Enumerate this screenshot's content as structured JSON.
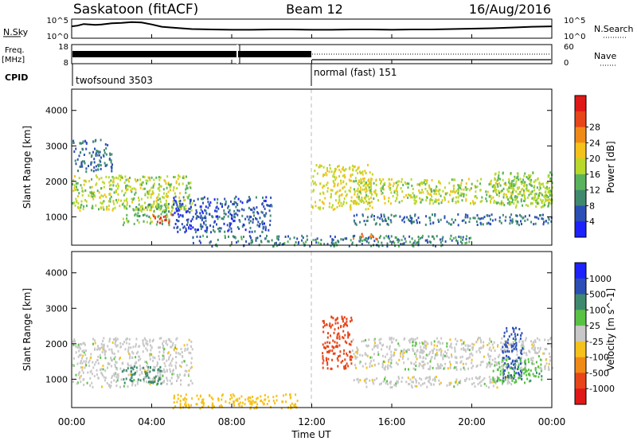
{
  "header": {
    "station": "Saskatoon (fitACF)",
    "beam": "Beam 12",
    "date": "16/Aug/2016"
  },
  "chart_data": [
    {
      "type": "line",
      "panel": "noise",
      "left_label": "N.Sky",
      "right_label": "N.Search",
      "left_ticks": [
        "10^5",
        "10^0"
      ],
      "right_ticks": [
        "10^5",
        "10^0"
      ],
      "x": [
        0,
        0.3,
        0.6,
        0.9,
        1.2,
        1.5,
        2.0,
        2.5,
        3.0,
        3.5,
        4.0,
        4.5,
        5.0,
        6.0,
        7.0,
        8.0,
        9.0,
        10.0,
        11.0,
        12.0,
        13.0,
        14.0,
        15.0,
        16.0,
        17.0,
        18.0,
        19.0,
        20.0,
        21.0,
        22.0,
        23.0,
        24.0
      ],
      "values": [
        3.1,
        3.3,
        3.7,
        3.6,
        3.5,
        3.6,
        3.9,
        4.0,
        4.2,
        4.1,
        3.6,
        3.0,
        2.8,
        2.4,
        2.3,
        2.2,
        2.2,
        2.3,
        2.3,
        2.2,
        2.2,
        2.3,
        2.3,
        2.2,
        2.3,
        2.3,
        2.4,
        2.5,
        2.6,
        2.8,
        3.0,
        3.1
      ],
      "ylim": [
        0,
        5
      ]
    },
    {
      "type": "line",
      "panel": "frequency",
      "left_label": "Freq.",
      "left_unit": "[MHz]",
      "left_ticks": [
        "18",
        "8"
      ],
      "right_label": "Nave",
      "right_ticks": [
        "60",
        "0"
      ],
      "cpid_label": "CPID",
      "cpid_segments": [
        {
          "label": "twofsound 3503",
          "start": 0,
          "end": 12
        },
        {
          "label": "normal (fast) 151",
          "start": 12,
          "end": 24
        }
      ]
    },
    {
      "type": "heatmap",
      "panel": "power",
      "ylabel": "Slant Range [km]",
      "yticks": [
        "1000",
        "2000",
        "3000",
        "4000"
      ],
      "ylim": [
        200,
        4600
      ],
      "colorbar_label": "Power [dB]",
      "colorbar_ticks": [
        "4",
        "8",
        "12",
        "16",
        "20",
        "24",
        "28"
      ],
      "colorbar_colors": [
        "#1d22ff",
        "#2c4fb5",
        "#3f8a6e",
        "#59b35c",
        "#b8d92a",
        "#f5c21b",
        "#f08a17",
        "#e8451a",
        "#e01818"
      ],
      "bands": [
        {
          "start": 0.0,
          "end": 6.0,
          "range_low": 1200,
          "range_high": 2200,
          "level": 16
        },
        {
          "start": 0.0,
          "end": 2.0,
          "range_low": 2300,
          "range_high": 3200,
          "level": 6
        },
        {
          "start": 2.5,
          "end": 5.0,
          "range_low": 800,
          "range_high": 1400,
          "level": 12
        },
        {
          "start": 4.0,
          "end": 5.0,
          "range_low": 850,
          "range_high": 1100,
          "level": 28
        },
        {
          "start": 5.0,
          "end": 10.0,
          "range_low": 600,
          "range_high": 1600,
          "level": 4
        },
        {
          "start": 12.0,
          "end": 15.0,
          "range_low": 1200,
          "range_high": 2500,
          "level": 18
        },
        {
          "start": 14.0,
          "end": 24.0,
          "range_low": 1400,
          "range_high": 2100,
          "level": 16
        },
        {
          "start": 14.0,
          "end": 24.0,
          "range_low": 800,
          "range_high": 1100,
          "level": 6
        },
        {
          "start": 6.0,
          "end": 20.0,
          "range_low": 200,
          "range_high": 500,
          "level": 8
        },
        {
          "start": 14.0,
          "end": 15.5,
          "range_low": 400,
          "range_high": 550,
          "level": 26
        },
        {
          "start": 21.0,
          "end": 24.0,
          "range_low": 1300,
          "range_high": 2300,
          "level": 14
        }
      ]
    },
    {
      "type": "heatmap",
      "panel": "velocity",
      "ylabel": "Slant Range [km]",
      "yticks": [
        "1000",
        "2000",
        "3000",
        "4000"
      ],
      "ylim": [
        200,
        4600
      ],
      "colorbar_label": "Velocity [m s^-1]",
      "colorbar_ticks": [
        "1000",
        "500",
        "100",
        "25",
        "-25",
        "-100",
        "-500",
        "-1000"
      ],
      "colorbar_colors": [
        "#1d22ff",
        "#2c4fb5",
        "#3f8a6e",
        "#59c245",
        "#c8c8c8",
        "#f5c21b",
        "#f08a17",
        "#e8451a",
        "#e01818"
      ],
      "bands": [
        {
          "start": 0.0,
          "end": 6.0,
          "range_low": 800,
          "range_high": 2200,
          "level": 0
        },
        {
          "start": 2.5,
          "end": 4.5,
          "range_low": 900,
          "range_high": 1400,
          "level": 300
        },
        {
          "start": 5.0,
          "end": 11.5,
          "range_low": 200,
          "range_high": 600,
          "level": -60
        },
        {
          "start": 12.5,
          "end": 14.0,
          "range_low": 1300,
          "range_high": 2800,
          "level": -700
        },
        {
          "start": 14.0,
          "end": 24.0,
          "range_low": 1300,
          "range_high": 2200,
          "level": 0
        },
        {
          "start": 14.0,
          "end": 22.0,
          "range_low": 800,
          "range_high": 1100,
          "level": 0
        },
        {
          "start": 21.5,
          "end": 22.5,
          "range_low": 1000,
          "range_high": 2500,
          "level": 700
        },
        {
          "start": 21.0,
          "end": 23.5,
          "range_low": 900,
          "range_high": 1600,
          "level": 80
        }
      ]
    }
  ],
  "xaxis": {
    "label": "Time UT",
    "ticks": [
      "00:00",
      "04:00",
      "08:00",
      "12:00",
      "16:00",
      "20:00",
      "00:00"
    ]
  }
}
